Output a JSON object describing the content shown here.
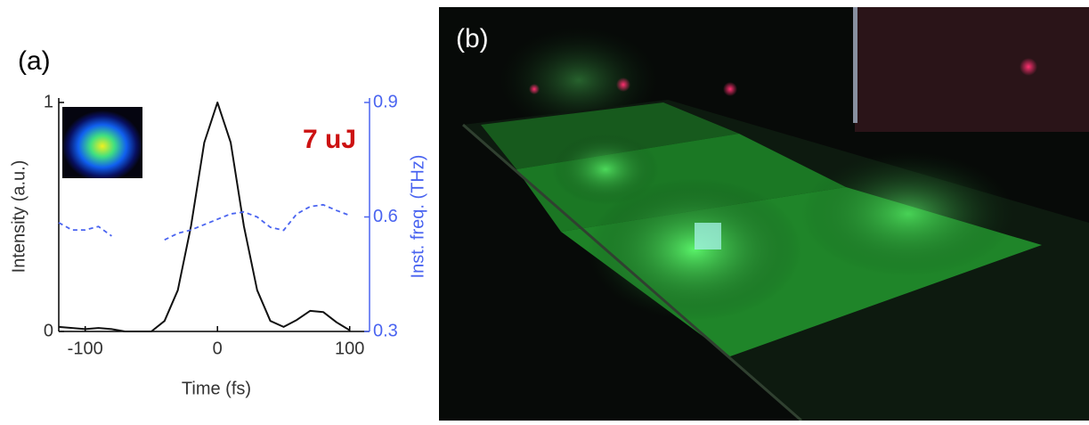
{
  "chart_data": {
    "type": "line",
    "panel_label": "(a)",
    "annotation": "7 uJ",
    "annotation_color": "#cc1111",
    "xlabel": "Time (fs)",
    "ylabel": "Intensity (a.u.)",
    "y2label": "Inst. freq. (THz)",
    "x": [
      -120,
      -110,
      -100,
      -90,
      -80,
      -70,
      -60,
      -50,
      -40,
      -30,
      -20,
      -10,
      0,
      10,
      20,
      30,
      40,
      50,
      60,
      70,
      80,
      90,
      100
    ],
    "series": [
      {
        "color": "#111111",
        "linestyle": "solid",
        "values": [
          0.02,
          0.015,
          0.01,
          0.015,
          0.01,
          0.0,
          0.0,
          0.0,
          0.046,
          0.18,
          0.46,
          0.825,
          1,
          0.825,
          0.46,
          0.18,
          0.046,
          0.02,
          0.05,
          0.09,
          0.085,
          0.04,
          0.005
        ]
      },
      {
        "color": "#4a64f0",
        "linestyle": "dashed",
        "axis": "y2",
        "values": [
          0.585,
          0.566,
          0.566,
          0.575,
          0.55,
          null,
          null,
          null,
          0.54,
          0.557,
          0.566,
          0.58,
          0.594,
          0.608,
          0.613,
          0.6,
          0.573,
          0.565,
          0.608,
          0.627,
          0.632,
          0.617,
          0.604
        ]
      }
    ],
    "xlim": [
      -120,
      115
    ],
    "xticks": [
      -100,
      0,
      100
    ],
    "ylim": [
      0,
      1
    ],
    "yticks": [
      0,
      1
    ],
    "y2lim": [
      0.3,
      0.9
    ],
    "y2ticks": [
      0.3,
      0.6,
      0.9
    ],
    "y2color": "#4a64f0"
  },
  "photo": {
    "panel_label": "(b)"
  }
}
